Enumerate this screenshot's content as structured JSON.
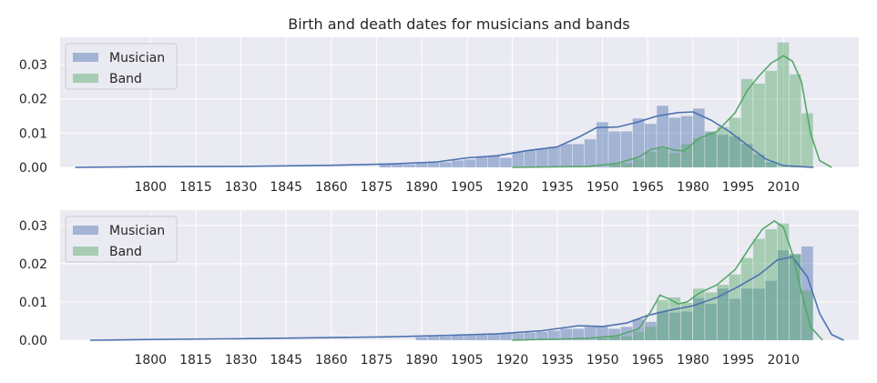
{
  "title": "Birth and death dates for musicians and bands",
  "colors": {
    "musician_fill": "#4c72b0",
    "band_fill": "#55a868",
    "musician_line": "#4c72b0",
    "band_line": "#55a868",
    "panel_bg": "#eaeaf2",
    "grid": "#ffffff"
  },
  "chart_data": [
    {
      "type": "bar",
      "subtype": "histogram-with-kde",
      "xlim": [
        1770,
        2035
      ],
      "ylim": [
        0,
        0.038
      ],
      "x_ticks": [
        "1800",
        "1815",
        "1830",
        "1845",
        "1860",
        "1875",
        "1890",
        "1905",
        "1920",
        "1935",
        "1950",
        "1965",
        "1980",
        "1995",
        "2010"
      ],
      "y_ticks": [
        "0.00",
        "0.01",
        "0.02",
        "0.03"
      ],
      "grid": true,
      "legend_position": "top-left",
      "legend": [
        "Musician",
        "Band"
      ],
      "bin_width": 4,
      "series": [
        {
          "name": "Musician",
          "bins": [
            [
              1876,
              0.0008
            ],
            [
              1880,
              0.0009
            ],
            [
              1884,
              0.0009
            ],
            [
              1888,
              0.0013
            ],
            [
              1892,
              0.0015
            ],
            [
              1896,
              0.0015
            ],
            [
              1900,
              0.002
            ],
            [
              1904,
              0.0023
            ],
            [
              1908,
              0.003
            ],
            [
              1912,
              0.0035
            ],
            [
              1916,
              0.0028
            ],
            [
              1920,
              0.0045
            ],
            [
              1924,
              0.005
            ],
            [
              1928,
              0.0055
            ],
            [
              1932,
              0.006
            ],
            [
              1936,
              0.0068
            ],
            [
              1940,
              0.0068
            ],
            [
              1944,
              0.0082
            ],
            [
              1948,
              0.0132
            ],
            [
              1952,
              0.0105
            ],
            [
              1956,
              0.0105
            ],
            [
              1960,
              0.0143
            ],
            [
              1964,
              0.0127
            ],
            [
              1968,
              0.018
            ],
            [
              1972,
              0.0145
            ],
            [
              1976,
              0.015
            ],
            [
              1980,
              0.0172
            ],
            [
              1984,
              0.0105
            ],
            [
              1988,
              0.0095
            ],
            [
              1992,
              0.009
            ],
            [
              1996,
              0.0068
            ],
            [
              2000,
              0.0038
            ],
            [
              2004,
              0.0015
            ]
          ],
          "kde": [
            [
              1775,
              0.0
            ],
            [
              1800,
              0.0002
            ],
            [
              1830,
              0.0003
            ],
            [
              1860,
              0.0006
            ],
            [
              1880,
              0.001
            ],
            [
              1895,
              0.0016
            ],
            [
              1905,
              0.0028
            ],
            [
              1915,
              0.0034
            ],
            [
              1925,
              0.0049
            ],
            [
              1935,
              0.006
            ],
            [
              1942,
              0.0088
            ],
            [
              1948,
              0.0116
            ],
            [
              1955,
              0.0118
            ],
            [
              1962,
              0.0133
            ],
            [
              1968,
              0.015
            ],
            [
              1975,
              0.016
            ],
            [
              1980,
              0.0162
            ],
            [
              1986,
              0.0138
            ],
            [
              1992,
              0.0105
            ],
            [
              1998,
              0.0065
            ],
            [
              2004,
              0.0025
            ],
            [
              2010,
              0.0005
            ],
            [
              2020,
              0.0
            ]
          ]
        },
        {
          "name": "Band",
          "bins": [
            [
              1952,
              0.0012
            ],
            [
              1956,
              0.0012
            ],
            [
              1960,
              0.0025
            ],
            [
              1964,
              0.0045
            ],
            [
              1968,
              0.0055
            ],
            [
              1972,
              0.0042
            ],
            [
              1976,
              0.0068
            ],
            [
              1980,
              0.0085
            ],
            [
              1984,
              0.0102
            ],
            [
              1988,
              0.0118
            ],
            [
              1992,
              0.0145
            ],
            [
              1996,
              0.0258
            ],
            [
              2000,
              0.0245
            ],
            [
              2004,
              0.0282
            ],
            [
              2008,
              0.0365
            ],
            [
              2012,
              0.0272
            ],
            [
              2016,
              0.0158
            ]
          ],
          "kde": [
            [
              1920,
              0.0
            ],
            [
              1945,
              0.0003
            ],
            [
              1955,
              0.0012
            ],
            [
              1962,
              0.003
            ],
            [
              1966,
              0.0052
            ],
            [
              1970,
              0.006
            ],
            [
              1974,
              0.005
            ],
            [
              1977,
              0.0048
            ],
            [
              1982,
              0.0085
            ],
            [
              1988,
              0.0105
            ],
            [
              1994,
              0.016
            ],
            [
              1998,
              0.0225
            ],
            [
              2002,
              0.0268
            ],
            [
              2006,
              0.0305
            ],
            [
              2010,
              0.0326
            ],
            [
              2013,
              0.031
            ],
            [
              2016,
              0.025
            ],
            [
              2019,
              0.01
            ],
            [
              2022,
              0.002
            ],
            [
              2026,
              0.0
            ]
          ]
        }
      ]
    },
    {
      "type": "bar",
      "subtype": "histogram-with-kde",
      "xlim": [
        1770,
        2035
      ],
      "ylim": [
        0,
        0.034
      ],
      "x_ticks": [
        "1800",
        "1815",
        "1830",
        "1845",
        "1860",
        "1875",
        "1890",
        "1905",
        "1920",
        "1935",
        "1950",
        "1965",
        "1980",
        "1995",
        "2010"
      ],
      "y_ticks": [
        "0.00",
        "0.01",
        "0.02",
        "0.03"
      ],
      "grid": true,
      "legend_position": "top-left",
      "legend": [
        "Musician",
        "Band"
      ],
      "bin_width": 4,
      "series": [
        {
          "name": "Musician",
          "bins": [
            [
              1888,
              0.0008
            ],
            [
              1892,
              0.001
            ],
            [
              1896,
              0.001
            ],
            [
              1900,
              0.0012
            ],
            [
              1904,
              0.0013
            ],
            [
              1908,
              0.0015
            ],
            [
              1912,
              0.0016
            ],
            [
              1916,
              0.0018
            ],
            [
              1920,
              0.0018
            ],
            [
              1924,
              0.002
            ],
            [
              1928,
              0.0022
            ],
            [
              1932,
              0.0025
            ],
            [
              1936,
              0.003
            ],
            [
              1940,
              0.003
            ],
            [
              1944,
              0.0035
            ],
            [
              1948,
              0.0035
            ],
            [
              1952,
              0.003
            ],
            [
              1956,
              0.0035
            ],
            [
              1960,
              0.0055
            ],
            [
              1964,
              0.0048
            ],
            [
              1968,
              0.0075
            ],
            [
              1972,
              0.0072
            ],
            [
              1976,
              0.0075
            ],
            [
              1980,
              0.011
            ],
            [
              1984,
              0.0095
            ],
            [
              1988,
              0.0135
            ],
            [
              1992,
              0.0108
            ],
            [
              1996,
              0.0135
            ],
            [
              2000,
              0.0135
            ],
            [
              2004,
              0.0155
            ],
            [
              2008,
              0.0235
            ],
            [
              2012,
              0.0225
            ],
            [
              2016,
              0.0245
            ]
          ],
          "kde": [
            [
              1780,
              0.0
            ],
            [
              1800,
              0.0002
            ],
            [
              1830,
              0.0004
            ],
            [
              1860,
              0.0007
            ],
            [
              1880,
              0.0009
            ],
            [
              1900,
              0.0013
            ],
            [
              1915,
              0.0017
            ],
            [
              1930,
              0.0025
            ],
            [
              1942,
              0.0038
            ],
            [
              1950,
              0.0036
            ],
            [
              1958,
              0.0045
            ],
            [
              1965,
              0.0065
            ],
            [
              1972,
              0.0078
            ],
            [
              1980,
              0.009
            ],
            [
              1988,
              0.0112
            ],
            [
              1995,
              0.014
            ],
            [
              2002,
              0.0172
            ],
            [
              2008,
              0.021
            ],
            [
              2013,
              0.0218
            ],
            [
              2018,
              0.0165
            ],
            [
              2022,
              0.007
            ],
            [
              2026,
              0.0015
            ],
            [
              2030,
              0.0
            ]
          ]
        },
        {
          "name": "Band",
          "bins": [
            [
              1948,
              0.0005
            ],
            [
              1952,
              0.001
            ],
            [
              1956,
              0.001
            ],
            [
              1960,
              0.0022
            ],
            [
              1964,
              0.0035
            ],
            [
              1968,
              0.0105
            ],
            [
              1972,
              0.0112
            ],
            [
              1976,
              0.0098
            ],
            [
              1980,
              0.0135
            ],
            [
              1984,
              0.0125
            ],
            [
              1988,
              0.0145
            ],
            [
              1992,
              0.0172
            ],
            [
              1996,
              0.0215
            ],
            [
              2000,
              0.0265
            ],
            [
              2004,
              0.029
            ],
            [
              2008,
              0.0305
            ],
            [
              2012,
              0.0225
            ],
            [
              2016,
              0.013
            ]
          ],
          "kde": [
            [
              1920,
              0.0
            ],
            [
              1945,
              0.0005
            ],
            [
              1955,
              0.0012
            ],
            [
              1962,
              0.003
            ],
            [
              1966,
              0.0075
            ],
            [
              1969,
              0.0118
            ],
            [
              1972,
              0.0108
            ],
            [
              1975,
              0.0095
            ],
            [
              1978,
              0.01
            ],
            [
              1982,
              0.0123
            ],
            [
              1988,
              0.0145
            ],
            [
              1994,
              0.0185
            ],
            [
              1999,
              0.0245
            ],
            [
              2003,
              0.029
            ],
            [
              2007,
              0.0312
            ],
            [
              2010,
              0.0295
            ],
            [
              2013,
              0.0225
            ],
            [
              2016,
              0.0125
            ],
            [
              2019,
              0.0035
            ],
            [
              2023,
              0.0
            ]
          ]
        }
      ]
    }
  ]
}
